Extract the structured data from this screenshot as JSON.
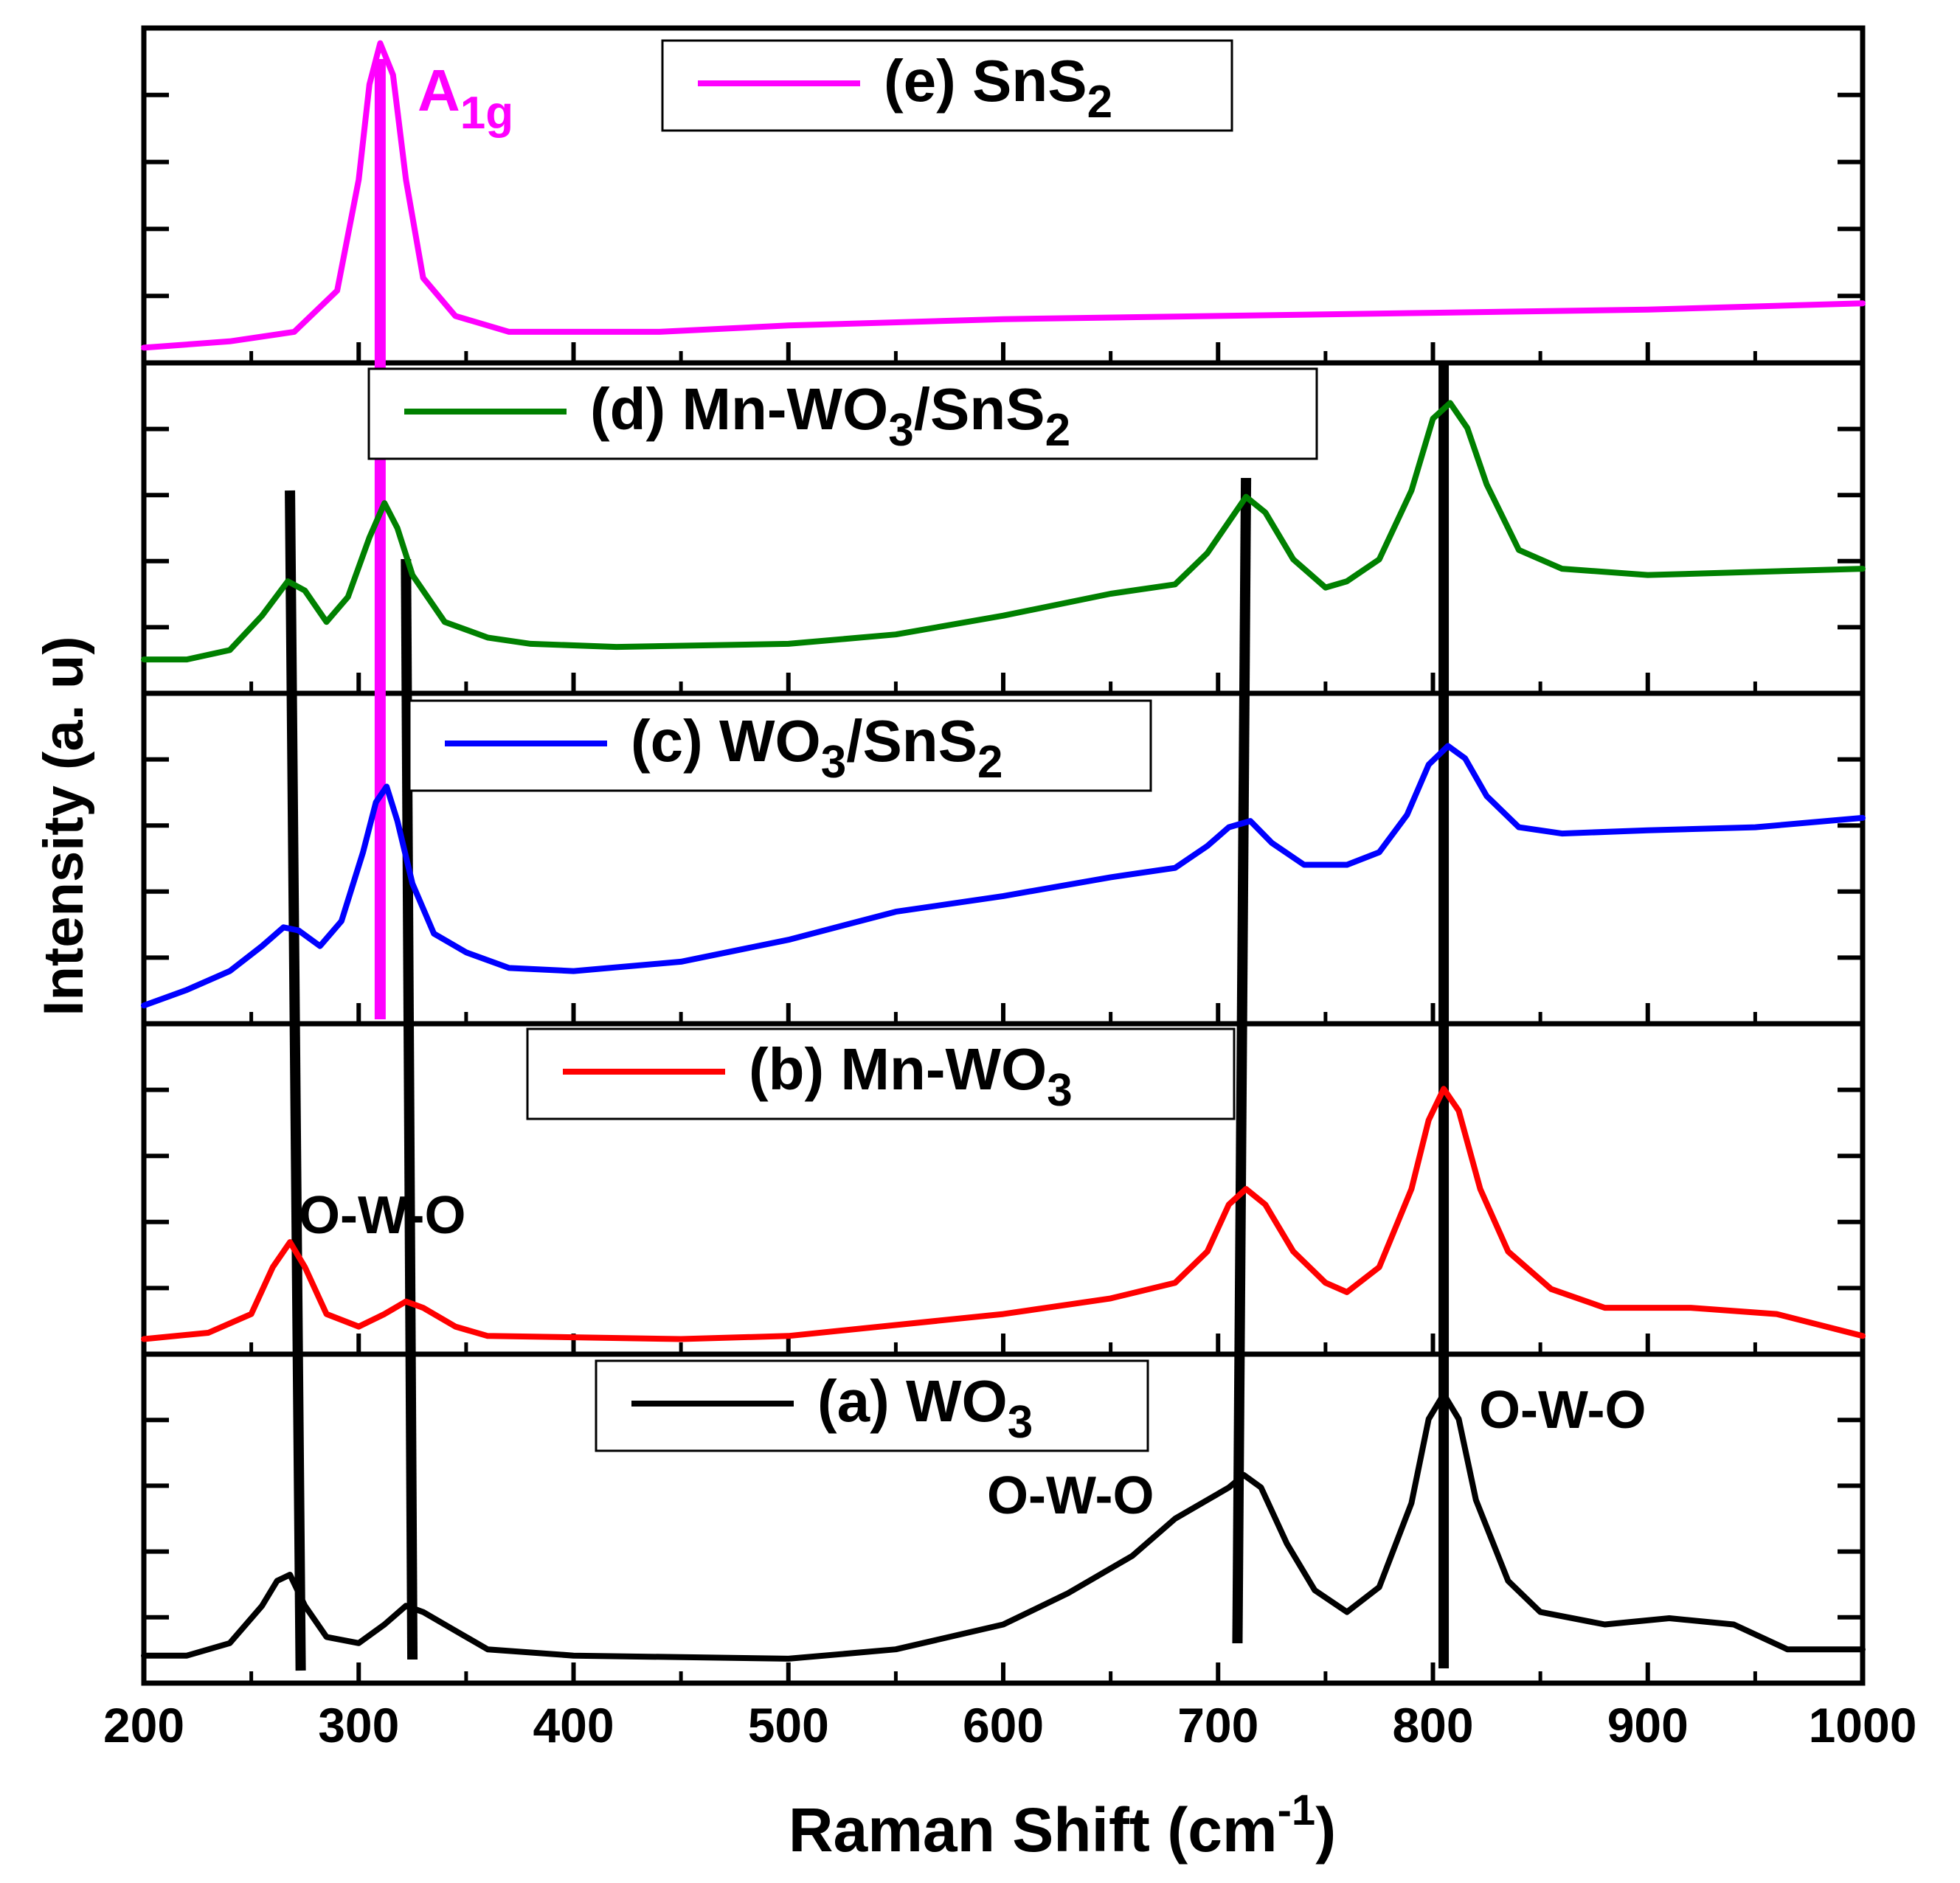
{
  "chart_data": {
    "type": "line",
    "layout": "stacked-panels",
    "xlabel": "Raman Shift (cm",
    "xlabel_superscript": "-1",
    "xlabel_tail": ")",
    "ylabel": "Intensity (a. u)",
    "xlim": [
      200,
      1000
    ],
    "x_ticks": [
      200,
      300,
      400,
      500,
      600,
      700,
      800,
      900,
      1000
    ],
    "x_tick_labels": [
      "200",
      "300",
      "400",
      "500",
      "600",
      "700",
      "800",
      "900",
      "1000"
    ],
    "series": [
      {
        "id": "a",
        "name": "(a) WO",
        "sub": "3",
        "tail": "",
        "color": "#000000",
        "points": [
          [
            200,
            0.06
          ],
          [
            220,
            0.06
          ],
          [
            240,
            0.1
          ],
          [
            255,
            0.22
          ],
          [
            262,
            0.3
          ],
          [
            268,
            0.32
          ],
          [
            275,
            0.22
          ],
          [
            285,
            0.12
          ],
          [
            300,
            0.1
          ],
          [
            312,
            0.16
          ],
          [
            322,
            0.22
          ],
          [
            330,
            0.2
          ],
          [
            345,
            0.14
          ],
          [
            360,
            0.08
          ],
          [
            400,
            0.06
          ],
          [
            500,
            0.05
          ],
          [
            550,
            0.08
          ],
          [
            600,
            0.16
          ],
          [
            630,
            0.26
          ],
          [
            660,
            0.38
          ],
          [
            680,
            0.5
          ],
          [
            695,
            0.56
          ],
          [
            705,
            0.6
          ],
          [
            712,
            0.64
          ],
          [
            720,
            0.6
          ],
          [
            732,
            0.42
          ],
          [
            745,
            0.27
          ],
          [
            760,
            0.2
          ],
          [
            775,
            0.28
          ],
          [
            790,
            0.55
          ],
          [
            798,
            0.82
          ],
          [
            805,
            0.9
          ],
          [
            812,
            0.82
          ],
          [
            820,
            0.56
          ],
          [
            835,
            0.3
          ],
          [
            850,
            0.2
          ],
          [
            880,
            0.16
          ],
          [
            910,
            0.18
          ],
          [
            940,
            0.16
          ],
          [
            965,
            0.08
          ],
          [
            1000,
            0.08
          ]
        ]
      },
      {
        "id": "b",
        "name": "(b) Mn-WO",
        "sub": "3",
        "tail": "",
        "color": "#ff0000",
        "points": [
          [
            200,
            0.02
          ],
          [
            230,
            0.04
          ],
          [
            250,
            0.1
          ],
          [
            260,
            0.25
          ],
          [
            268,
            0.33
          ],
          [
            275,
            0.25
          ],
          [
            285,
            0.1
          ],
          [
            300,
            0.06
          ],
          [
            312,
            0.1
          ],
          [
            322,
            0.14
          ],
          [
            330,
            0.12
          ],
          [
            345,
            0.06
          ],
          [
            360,
            0.03
          ],
          [
            450,
            0.02
          ],
          [
            500,
            0.03
          ],
          [
            600,
            0.1
          ],
          [
            650,
            0.15
          ],
          [
            680,
            0.2
          ],
          [
            695,
            0.3
          ],
          [
            705,
            0.45
          ],
          [
            713,
            0.5
          ],
          [
            722,
            0.45
          ],
          [
            735,
            0.3
          ],
          [
            750,
            0.2
          ],
          [
            760,
            0.17
          ],
          [
            775,
            0.25
          ],
          [
            790,
            0.5
          ],
          [
            798,
            0.72
          ],
          [
            805,
            0.82
          ],
          [
            812,
            0.75
          ],
          [
            822,
            0.5
          ],
          [
            835,
            0.3
          ],
          [
            855,
            0.18
          ],
          [
            880,
            0.12
          ],
          [
            920,
            0.12
          ],
          [
            960,
            0.1
          ],
          [
            1000,
            0.03
          ]
        ]
      },
      {
        "id": "c",
        "name": "(c) WO",
        "sub": "3",
        "tail": "/SnS2",
        "color": "#0000ff",
        "points": [
          [
            200,
            0.03
          ],
          [
            220,
            0.08
          ],
          [
            240,
            0.14
          ],
          [
            255,
            0.22
          ],
          [
            265,
            0.28
          ],
          [
            272,
            0.27
          ],
          [
            282,
            0.22
          ],
          [
            292,
            0.3
          ],
          [
            302,
            0.52
          ],
          [
            308,
            0.68
          ],
          [
            313,
            0.73
          ],
          [
            318,
            0.62
          ],
          [
            325,
            0.42
          ],
          [
            335,
            0.26
          ],
          [
            350,
            0.2
          ],
          [
            370,
            0.15
          ],
          [
            400,
            0.14
          ],
          [
            450,
            0.17
          ],
          [
            500,
            0.24
          ],
          [
            550,
            0.33
          ],
          [
            600,
            0.38
          ],
          [
            650,
            0.44
          ],
          [
            680,
            0.47
          ],
          [
            695,
            0.54
          ],
          [
            705,
            0.6
          ],
          [
            715,
            0.62
          ],
          [
            725,
            0.55
          ],
          [
            740,
            0.48
          ],
          [
            760,
            0.48
          ],
          [
            775,
            0.52
          ],
          [
            788,
            0.64
          ],
          [
            798,
            0.8
          ],
          [
            807,
            0.86
          ],
          [
            815,
            0.82
          ],
          [
            825,
            0.7
          ],
          [
            840,
            0.6
          ],
          [
            860,
            0.58
          ],
          [
            900,
            0.59
          ],
          [
            950,
            0.6
          ],
          [
            1000,
            0.63
          ]
        ]
      },
      {
        "id": "d",
        "name": "(d) Mn-WO",
        "sub": "3",
        "tail": "/SnS2",
        "color": "#008000",
        "points": [
          [
            200,
            0.08
          ],
          [
            220,
            0.08
          ],
          [
            240,
            0.11
          ],
          [
            255,
            0.22
          ],
          [
            267,
            0.33
          ],
          [
            275,
            0.3
          ],
          [
            285,
            0.2
          ],
          [
            295,
            0.28
          ],
          [
            305,
            0.47
          ],
          [
            312,
            0.58
          ],
          [
            318,
            0.5
          ],
          [
            325,
            0.35
          ],
          [
            340,
            0.2
          ],
          [
            360,
            0.15
          ],
          [
            380,
            0.13
          ],
          [
            420,
            0.12
          ],
          [
            500,
            0.13
          ],
          [
            550,
            0.16
          ],
          [
            600,
            0.22
          ],
          [
            650,
            0.29
          ],
          [
            680,
            0.32
          ],
          [
            695,
            0.42
          ],
          [
            705,
            0.52
          ],
          [
            713,
            0.6
          ],
          [
            722,
            0.55
          ],
          [
            735,
            0.4
          ],
          [
            750,
            0.31
          ],
          [
            760,
            0.33
          ],
          [
            775,
            0.4
          ],
          [
            790,
            0.62
          ],
          [
            800,
            0.85
          ],
          [
            808,
            0.9
          ],
          [
            816,
            0.82
          ],
          [
            825,
            0.64
          ],
          [
            840,
            0.43
          ],
          [
            860,
            0.37
          ],
          [
            900,
            0.35
          ],
          [
            950,
            0.36
          ],
          [
            1000,
            0.37
          ]
        ]
      },
      {
        "id": "e",
        "name": "(e) SnS",
        "sub": "2",
        "tail": "",
        "color": "#ff00ff",
        "points": [
          [
            200,
            0.02
          ],
          [
            240,
            0.04
          ],
          [
            270,
            0.07
          ],
          [
            290,
            0.2
          ],
          [
            300,
            0.55
          ],
          [
            305,
            0.85
          ],
          [
            310,
            0.98
          ],
          [
            316,
            0.88
          ],
          [
            322,
            0.55
          ],
          [
            330,
            0.24
          ],
          [
            345,
            0.12
          ],
          [
            370,
            0.07
          ],
          [
            400,
            0.07
          ],
          [
            440,
            0.07
          ],
          [
            500,
            0.09
          ],
          [
            600,
            0.11
          ],
          [
            700,
            0.12
          ],
          [
            800,
            0.13
          ],
          [
            900,
            0.14
          ],
          [
            1000,
            0.16
          ]
        ]
      }
    ],
    "annotations": [
      {
        "id": "owo-1",
        "text": "O-W-O"
      },
      {
        "id": "owo-2",
        "text": "O-W-O"
      },
      {
        "id": "owo-3",
        "text": "O-W-O"
      },
      {
        "id": "a1g",
        "text": "A",
        "sub": "1g"
      }
    ],
    "reference_lines": [
      {
        "id": "ref-268",
        "x": 268,
        "color": "#000000"
      },
      {
        "id": "ref-322",
        "x": 322,
        "color": "#000000"
      },
      {
        "id": "ref-713",
        "x": 713,
        "color": "#000000"
      },
      {
        "id": "ref-805",
        "x": 805,
        "color": "#000000"
      },
      {
        "id": "ref-a1g",
        "x": 310,
        "color": "#ff00ff"
      }
    ]
  }
}
